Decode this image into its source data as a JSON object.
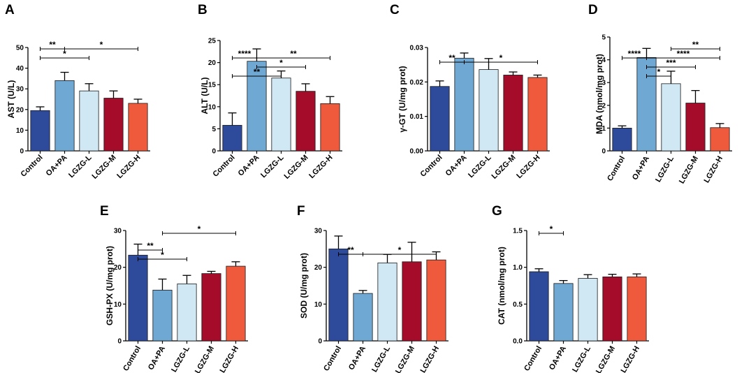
{
  "colors": {
    "Control": "#2e4b9b",
    "OA+PA": "#6fa8d2",
    "LGZG-L": "#cfe8f4",
    "LGZG-M": "#a50c2a",
    "LGZG-H": "#ef5a3c"
  },
  "chart_data": [
    {
      "id": "A",
      "type": "bar",
      "label": "A",
      "ylabel": "AST (U/L)",
      "categories": [
        "Control",
        "OA+PA",
        "LGZG-L",
        "LGZG-M",
        "LGZG-H"
      ],
      "values": [
        19.5,
        34,
        29,
        25.5,
        23
      ],
      "errors": [
        1.8,
        4,
        3.5,
        3.5,
        2
      ],
      "ylim": [
        0,
        50
      ],
      "ticks": [
        "0",
        "10",
        "20",
        "30",
        "40",
        "50"
      ],
      "annotations": [
        {
          "from": 0,
          "to": 1,
          "level": 78,
          "text": "**"
        },
        {
          "from": 0,
          "to": 2,
          "level": 91,
          "text": "*"
        },
        {
          "from": 1,
          "to": 4,
          "level": 78,
          "text": "*"
        }
      ]
    },
    {
      "id": "B",
      "type": "bar",
      "label": "B",
      "ylabel": "ALT (U/L)",
      "categories": [
        "Control",
        "OA+PA",
        "LGZG-L",
        "LGZG-M",
        "LGZG-H"
      ],
      "values": [
        5.8,
        20.3,
        16.5,
        13.5,
        10.7
      ],
      "errors": [
        2.8,
        2.8,
        1.6,
        1.7,
        1.6
      ],
      "ylim": [
        0,
        25
      ],
      "ticks": [
        "0",
        "5",
        "10",
        "15",
        "20",
        "25"
      ],
      "annotations": [
        {
          "from": 0,
          "to": 2,
          "level": 117,
          "text": "**"
        },
        {
          "from": 0,
          "to": 1,
          "level": 91,
          "text": "****"
        },
        {
          "from": 1,
          "to": 3,
          "level": 104,
          "text": "*"
        },
        {
          "from": 1,
          "to": 4,
          "level": 91,
          "text": "**"
        }
      ]
    },
    {
      "id": "C",
      "type": "bar",
      "label": "C",
      "ylabel": "γ-GT (U/mg prot)",
      "categories": [
        "Control",
        "OA+PA",
        "LGZG-L",
        "LGZG-M",
        "LGZG-H"
      ],
      "values": [
        0.0187,
        0.0269,
        0.0236,
        0.022,
        0.0213
      ],
      "errors": [
        0.0016,
        0.0015,
        0.0032,
        0.0009,
        0.0007
      ],
      "ylim": [
        0,
        0.03
      ],
      "ticks": [
        "0.00",
        "0.01",
        "0.02",
        "0.03"
      ],
      "annotations": [
        {
          "from": 0,
          "to": 1,
          "level": 97,
          "text": "**"
        },
        {
          "from": 1,
          "to": 4,
          "level": 97,
          "text": "*"
        }
      ]
    },
    {
      "id": "D",
      "type": "bar",
      "label": "D",
      "ylabel": "MDA (nmol/mg prot)",
      "categories": [
        "Control",
        "OA+PA",
        "LGZG-L",
        "LGZG-M",
        "LGZG-H"
      ],
      "values": [
        1,
        4.1,
        2.95,
        2.1,
        1.02
      ],
      "errors": [
        0.1,
        0.4,
        0.55,
        0.55,
        0.18
      ],
      "ylim": [
        0,
        5
      ],
      "ticks": [
        "0",
        "1",
        "2",
        "3",
        "4",
        "5"
      ],
      "annotations": [
        {
          "from": 1,
          "to": 2,
          "level": 117,
          "text": "*"
        },
        {
          "from": 1,
          "to": 3,
          "level": 104,
          "text": "***"
        },
        {
          "from": 0,
          "to": 1,
          "level": 91,
          "text": "****"
        },
        {
          "from": 1,
          "to": 4,
          "level": 91,
          "text": "****"
        },
        {
          "from": 2,
          "to": 4,
          "level": 78,
          "text": "**"
        }
      ]
    },
    {
      "id": "E",
      "type": "bar",
      "label": "E",
      "ylabel": "GSH-PX (U/mg prot)",
      "categories": [
        "Control",
        "OA+PA",
        "LGZG-L",
        "LGZG-M",
        "LGZG-H"
      ],
      "values": [
        23.3,
        13.8,
        15.5,
        18.3,
        20.3
      ],
      "errors": [
        3,
        3,
        2.3,
        0.6,
        1.2
      ],
      "ylim": [
        0,
        30
      ],
      "ticks": [
        "0",
        "10",
        "20",
        "30"
      ],
      "annotations": [
        {
          "from": 0,
          "to": 2,
          "level": 111,
          "text": "*"
        },
        {
          "from": 0,
          "to": 1,
          "level": 98,
          "text": "**"
        },
        {
          "from": 1,
          "to": 4,
          "level": 74,
          "text": "*"
        }
      ]
    },
    {
      "id": "F",
      "type": "bar",
      "label": "F",
      "ylabel": "SOD (U/mg prot)",
      "categories": [
        "Control",
        "OA+PA",
        "LGZG-L",
        "LGZG-M",
        "LGZG-H"
      ],
      "values": [
        25,
        12.9,
        21.2,
        21.5,
        22
      ],
      "errors": [
        3.5,
        0.8,
        2.3,
        5.3,
        2.2
      ],
      "ylim": [
        0,
        30
      ],
      "ticks": [
        "0",
        "10",
        "20",
        "30"
      ],
      "annotations": [
        {
          "from": 0,
          "to": 1,
          "level": 104,
          "text": "**"
        },
        {
          "from": 1,
          "to": 4,
          "level": 104,
          "text": "*"
        }
      ]
    },
    {
      "id": "G",
      "type": "bar",
      "label": "G",
      "ylabel": "CAT (nmol/mg prot)",
      "categories": [
        "Control",
        "OA+PA",
        "LGZG-L",
        "LGZG-M",
        "LGZG-H"
      ],
      "values": [
        0.94,
        0.78,
        0.85,
        0.87,
        0.87
      ],
      "errors": [
        0.04,
        0.04,
        0.05,
        0.035,
        0.04
      ],
      "ylim": [
        0,
        1.5
      ],
      "ticks": [
        "0.0",
        "0.5",
        "1.0",
        "1.5"
      ],
      "annotations": [
        {
          "from": 0,
          "to": 1,
          "level": 74,
          "text": "*"
        }
      ]
    }
  ]
}
